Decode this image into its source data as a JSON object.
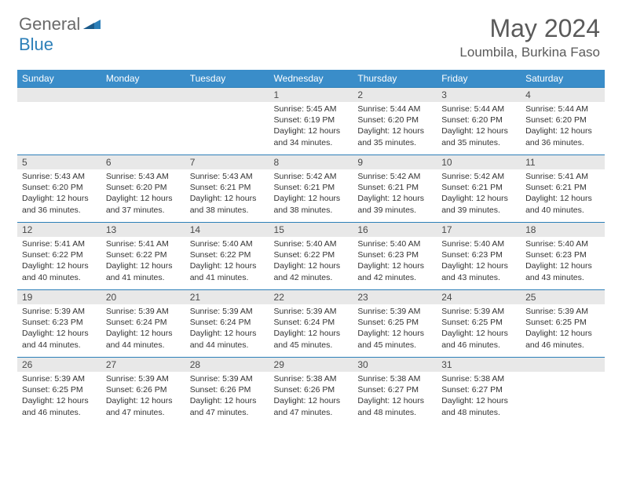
{
  "logo": {
    "text1": "General",
    "text2": "Blue"
  },
  "title": "May 2024",
  "location": "Loumbila, Burkina Faso",
  "colors": {
    "header_bg": "#3a8dc9",
    "header_text": "#ffffff",
    "daynum_bg": "#e8e8e8",
    "border": "#2c7fb8",
    "logo_gray": "#6a6a6a",
    "logo_blue": "#2c7fb8",
    "title_color": "#5a5a5a"
  },
  "weekdays": [
    "Sunday",
    "Monday",
    "Tuesday",
    "Wednesday",
    "Thursday",
    "Friday",
    "Saturday"
  ],
  "weeks": [
    [
      null,
      null,
      null,
      {
        "n": "1",
        "sunrise": "5:45 AM",
        "sunset": "6:19 PM",
        "daylight": "12 hours and 34 minutes."
      },
      {
        "n": "2",
        "sunrise": "5:44 AM",
        "sunset": "6:20 PM",
        "daylight": "12 hours and 35 minutes."
      },
      {
        "n": "3",
        "sunrise": "5:44 AM",
        "sunset": "6:20 PM",
        "daylight": "12 hours and 35 minutes."
      },
      {
        "n": "4",
        "sunrise": "5:44 AM",
        "sunset": "6:20 PM",
        "daylight": "12 hours and 36 minutes."
      }
    ],
    [
      {
        "n": "5",
        "sunrise": "5:43 AM",
        "sunset": "6:20 PM",
        "daylight": "12 hours and 36 minutes."
      },
      {
        "n": "6",
        "sunrise": "5:43 AM",
        "sunset": "6:20 PM",
        "daylight": "12 hours and 37 minutes."
      },
      {
        "n": "7",
        "sunrise": "5:43 AM",
        "sunset": "6:21 PM",
        "daylight": "12 hours and 38 minutes."
      },
      {
        "n": "8",
        "sunrise": "5:42 AM",
        "sunset": "6:21 PM",
        "daylight": "12 hours and 38 minutes."
      },
      {
        "n": "9",
        "sunrise": "5:42 AM",
        "sunset": "6:21 PM",
        "daylight": "12 hours and 39 minutes."
      },
      {
        "n": "10",
        "sunrise": "5:42 AM",
        "sunset": "6:21 PM",
        "daylight": "12 hours and 39 minutes."
      },
      {
        "n": "11",
        "sunrise": "5:41 AM",
        "sunset": "6:21 PM",
        "daylight": "12 hours and 40 minutes."
      }
    ],
    [
      {
        "n": "12",
        "sunrise": "5:41 AM",
        "sunset": "6:22 PM",
        "daylight": "12 hours and 40 minutes."
      },
      {
        "n": "13",
        "sunrise": "5:41 AM",
        "sunset": "6:22 PM",
        "daylight": "12 hours and 41 minutes."
      },
      {
        "n": "14",
        "sunrise": "5:40 AM",
        "sunset": "6:22 PM",
        "daylight": "12 hours and 41 minutes."
      },
      {
        "n": "15",
        "sunrise": "5:40 AM",
        "sunset": "6:22 PM",
        "daylight": "12 hours and 42 minutes."
      },
      {
        "n": "16",
        "sunrise": "5:40 AM",
        "sunset": "6:23 PM",
        "daylight": "12 hours and 42 minutes."
      },
      {
        "n": "17",
        "sunrise": "5:40 AM",
        "sunset": "6:23 PM",
        "daylight": "12 hours and 43 minutes."
      },
      {
        "n": "18",
        "sunrise": "5:40 AM",
        "sunset": "6:23 PM",
        "daylight": "12 hours and 43 minutes."
      }
    ],
    [
      {
        "n": "19",
        "sunrise": "5:39 AM",
        "sunset": "6:23 PM",
        "daylight": "12 hours and 44 minutes."
      },
      {
        "n": "20",
        "sunrise": "5:39 AM",
        "sunset": "6:24 PM",
        "daylight": "12 hours and 44 minutes."
      },
      {
        "n": "21",
        "sunrise": "5:39 AM",
        "sunset": "6:24 PM",
        "daylight": "12 hours and 44 minutes."
      },
      {
        "n": "22",
        "sunrise": "5:39 AM",
        "sunset": "6:24 PM",
        "daylight": "12 hours and 45 minutes."
      },
      {
        "n": "23",
        "sunrise": "5:39 AM",
        "sunset": "6:25 PM",
        "daylight": "12 hours and 45 minutes."
      },
      {
        "n": "24",
        "sunrise": "5:39 AM",
        "sunset": "6:25 PM",
        "daylight": "12 hours and 46 minutes."
      },
      {
        "n": "25",
        "sunrise": "5:39 AM",
        "sunset": "6:25 PM",
        "daylight": "12 hours and 46 minutes."
      }
    ],
    [
      {
        "n": "26",
        "sunrise": "5:39 AM",
        "sunset": "6:25 PM",
        "daylight": "12 hours and 46 minutes."
      },
      {
        "n": "27",
        "sunrise": "5:39 AM",
        "sunset": "6:26 PM",
        "daylight": "12 hours and 47 minutes."
      },
      {
        "n": "28",
        "sunrise": "5:39 AM",
        "sunset": "6:26 PM",
        "daylight": "12 hours and 47 minutes."
      },
      {
        "n": "29",
        "sunrise": "5:38 AM",
        "sunset": "6:26 PM",
        "daylight": "12 hours and 47 minutes."
      },
      {
        "n": "30",
        "sunrise": "5:38 AM",
        "sunset": "6:27 PM",
        "daylight": "12 hours and 48 minutes."
      },
      {
        "n": "31",
        "sunrise": "5:38 AM",
        "sunset": "6:27 PM",
        "daylight": "12 hours and 48 minutes."
      },
      null
    ]
  ],
  "labels": {
    "sunrise": "Sunrise:",
    "sunset": "Sunset:",
    "daylight": "Daylight:"
  }
}
